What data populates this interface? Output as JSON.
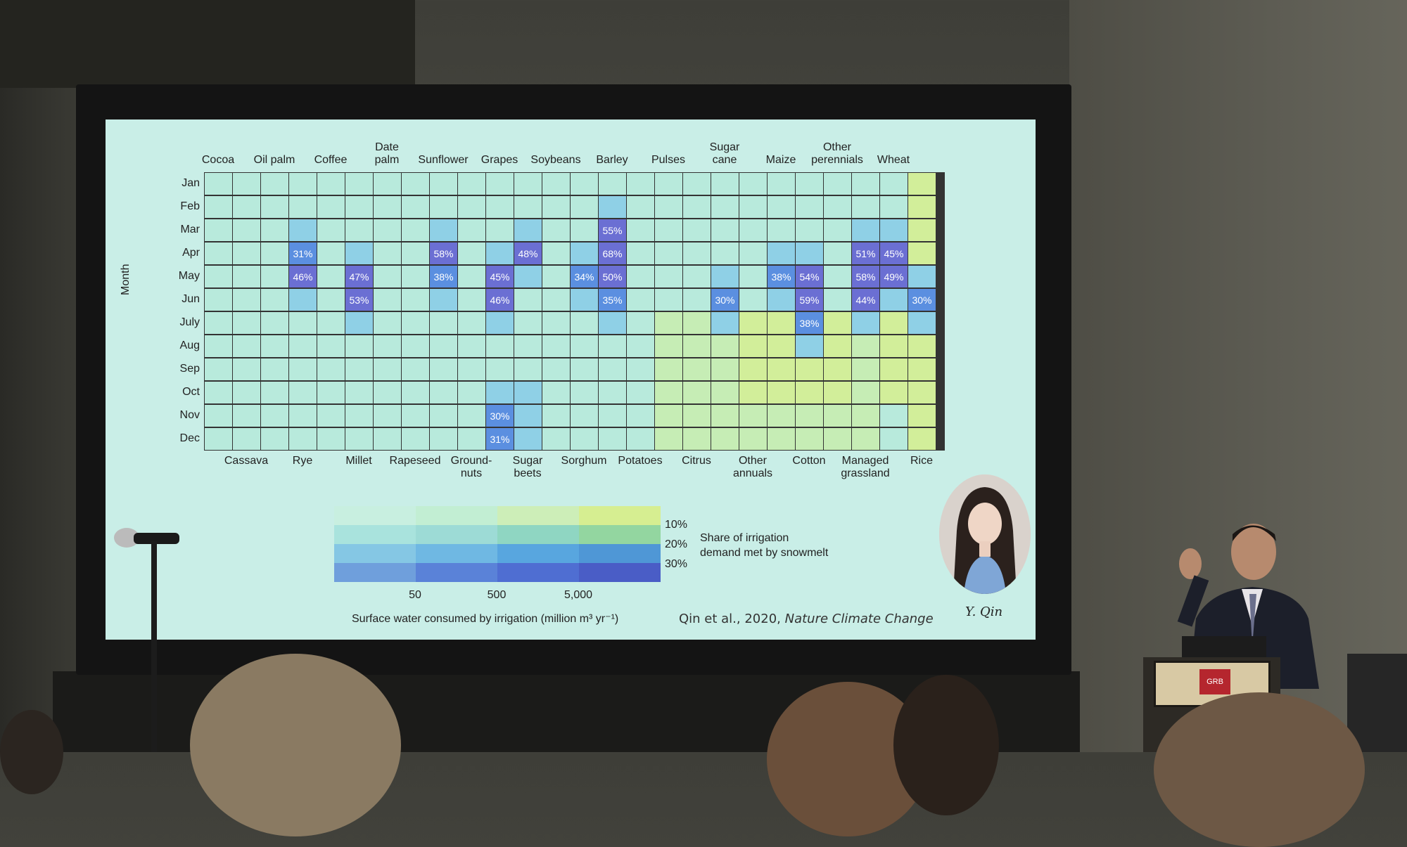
{
  "slide": {
    "y_axis_label": "Month",
    "months": [
      "Jan",
      "Feb",
      "Mar",
      "Apr",
      "May",
      "Jun",
      "July",
      "Aug",
      "Sep",
      "Oct",
      "Nov",
      "Dec"
    ],
    "top_crops": [
      {
        "label": "Cocoa",
        "col": 1
      },
      {
        "label": "Oil palm",
        "col": 3
      },
      {
        "label": "Coffee",
        "col": 5
      },
      {
        "label": "Date\npalm",
        "col": 7
      },
      {
        "label": "Sunflower",
        "col": 9
      },
      {
        "label": "Grapes",
        "col": 11
      },
      {
        "label": "Soybeans",
        "col": 13
      },
      {
        "label": "Barley",
        "col": 15
      },
      {
        "label": "Pulses",
        "col": 17
      },
      {
        "label": "Sugar\ncane",
        "col": 19
      },
      {
        "label": "Maize",
        "col": 21
      },
      {
        "label": "Other\nperennials",
        "col": 23
      },
      {
        "label": "Wheat",
        "col": 25
      }
    ],
    "bottom_crops": [
      {
        "label": "Cassava",
        "col": 2
      },
      {
        "label": "Rye",
        "col": 4
      },
      {
        "label": "Millet",
        "col": 6
      },
      {
        "label": "Rapeseed",
        "col": 8
      },
      {
        "label": "Ground-\nnuts",
        "col": 10
      },
      {
        "label": "Sugar\nbeets",
        "col": 12
      },
      {
        "label": "Sorghum",
        "col": 14
      },
      {
        "label": "Potatoes",
        "col": 16
      },
      {
        "label": "Citrus",
        "col": 18
      },
      {
        "label": "Other\nannuals",
        "col": 20
      },
      {
        "label": "Cotton",
        "col": 22
      },
      {
        "label": "Managed\ngrassland",
        "col": 24
      },
      {
        "label": "Rice",
        "col": 26
      }
    ],
    "cell_labels": [
      {
        "row": 3,
        "col": 4,
        "text": "31%"
      },
      {
        "row": 3,
        "col": 9,
        "text": "58%"
      },
      {
        "row": 3,
        "col": 12,
        "text": "48%"
      },
      {
        "row": 2,
        "col": 15,
        "text": "55%"
      },
      {
        "row": 3,
        "col": 15,
        "text": "68%"
      },
      {
        "row": 3,
        "col": 24,
        "text": "51%"
      },
      {
        "row": 3,
        "col": 25,
        "text": "45%"
      },
      {
        "row": 4,
        "col": 4,
        "text": "46%"
      },
      {
        "row": 4,
        "col": 6,
        "text": "47%"
      },
      {
        "row": 4,
        "col": 9,
        "text": "38%"
      },
      {
        "row": 4,
        "col": 11,
        "text": "45%"
      },
      {
        "row": 4,
        "col": 14,
        "text": "34%"
      },
      {
        "row": 4,
        "col": 15,
        "text": "50%"
      },
      {
        "row": 4,
        "col": 21,
        "text": "38%"
      },
      {
        "row": 4,
        "col": 22,
        "text": "54%"
      },
      {
        "row": 4,
        "col": 24,
        "text": "58%"
      },
      {
        "row": 4,
        "col": 25,
        "text": "49%"
      },
      {
        "row": 5,
        "col": 6,
        "text": "53%"
      },
      {
        "row": 5,
        "col": 11,
        "text": "46%"
      },
      {
        "row": 5,
        "col": 15,
        "text": "35%"
      },
      {
        "row": 5,
        "col": 19,
        "text": "30%"
      },
      {
        "row": 5,
        "col": 22,
        "text": "59%"
      },
      {
        "row": 5,
        "col": 24,
        "text": "44%"
      },
      {
        "row": 5,
        "col": 26,
        "text": "30%"
      },
      {
        "row": 6,
        "col": 22,
        "text": "38%"
      },
      {
        "row": 10,
        "col": 11,
        "text": "30%"
      },
      {
        "row": 11,
        "col": 11,
        "text": "31%"
      }
    ],
    "colors": {
      "base": "#b8eadc",
      "light_green": "#c6edb5",
      "yellow_green": "#d2ee9a",
      "light_blue": "#8fd0e6",
      "mid_blue": "#6bb2e6",
      "blue": "#5b8fe0",
      "purple": "#6b6fd3",
      "grid_line": "#333333"
    },
    "legend": {
      "share_levels": [
        "10%",
        "20%",
        "30%"
      ],
      "share_label": "Share of irrigation\ndemand met by snowmelt",
      "volume_ticks": [
        "50",
        "500",
        "5,000"
      ],
      "volume_label": "Surface water consumed by irrigation  (million m³ yr⁻¹)"
    },
    "citation_author": "Qin et al., 2020,",
    "citation_journal": "Nature Climate Change",
    "signature": "Y. Qin",
    "podium_logo": "GRB"
  }
}
